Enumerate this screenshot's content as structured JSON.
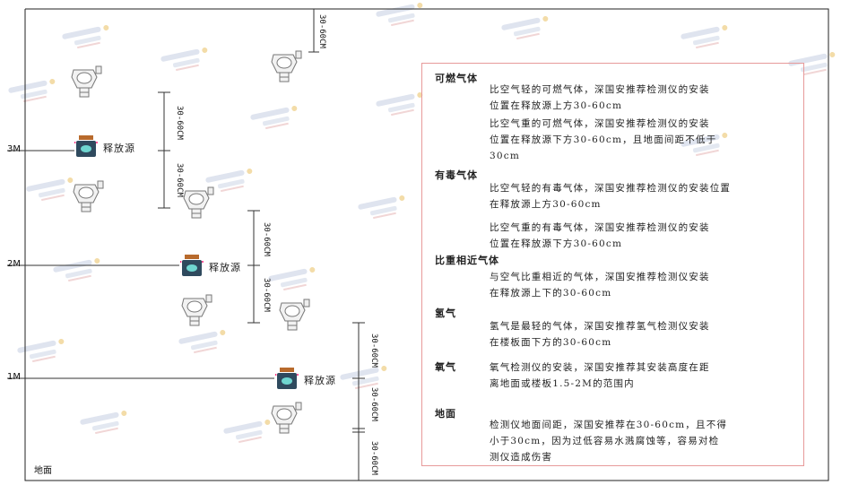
{
  "levels": {
    "m3": "3M",
    "m2": "2M",
    "m1": "1M",
    "ground": "地面"
  },
  "dimension_label": "30-60CM",
  "source_label": "释放源",
  "watermark": {
    "brand": "SINGOAN",
    "cn": "深国安"
  },
  "panel": {
    "sections": [
      {
        "title": "可燃气体",
        "paras": [
          "比空气轻的可燃气体，深国安推荐检测仪的安装\n位置在释放源上方30-60cm",
          "比空气重的可燃气体，深国安推荐检测仪的安装\n位置在释放源下方30-60cm，且地面间距不低于\n30cm"
        ]
      },
      {
        "title": "有毒气体",
        "paras": [
          "比空气轻的有毒气体，深国安推荐检测仪的安装位置\n在释放源上方30-60cm",
          "比空气重的有毒气体，深国安推荐检测仪的安装\n位置在释放源下方30-60cm"
        ]
      },
      {
        "title": "比重相近气体",
        "paras": [
          "与空气比重相近的气体，深国安推荐检测仪安装\n在释放源上下的30-60cm"
        ]
      },
      {
        "title": "氢气",
        "paras": [
          "氢气是最轻的气体，深国安推荐氢气检测仪安装\n在楼板面下方的30-60cm"
        ]
      },
      {
        "title": "氧气",
        "paras": [
          "氧气检测仪的安装，深国安推荐其安装高度在距\n离地面或楼板1.5-2M的范围内"
        ]
      },
      {
        "title": "地面",
        "paras": [
          "检测仪地面间距，深国安推荐在30-60cm，且不得\n小于30cm，因为过低容易水溅腐蚀等，容易对检\n测仪造成伤害"
        ]
      }
    ]
  }
}
